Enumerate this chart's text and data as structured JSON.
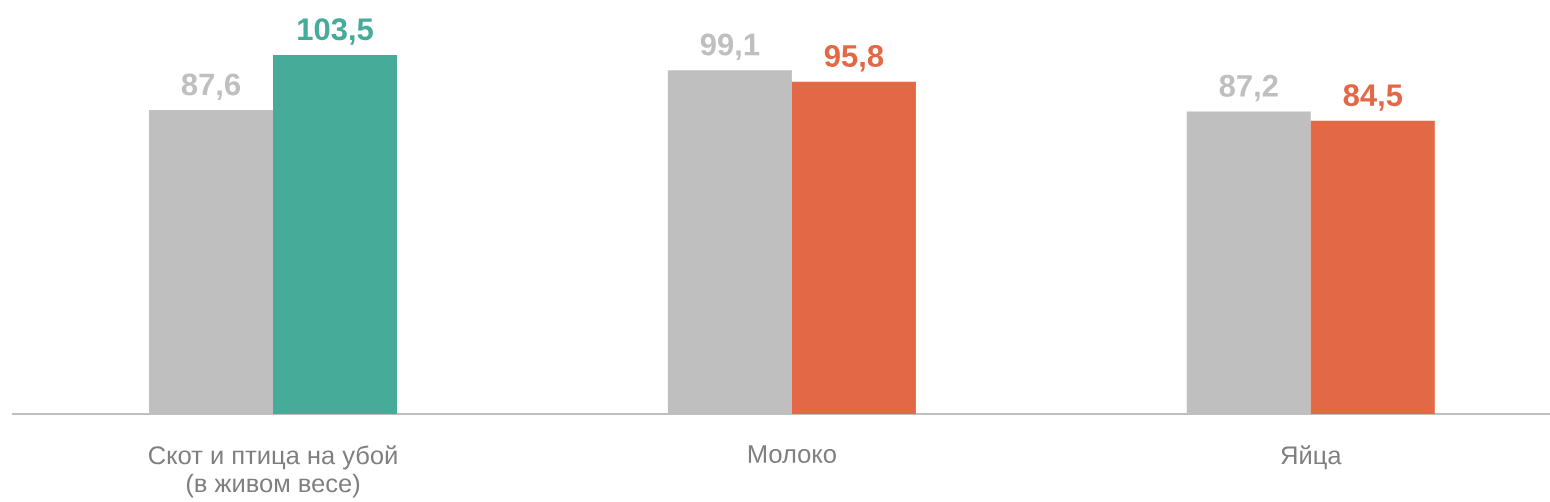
{
  "chart_data": {
    "type": "bar",
    "categories": [
      "Скот и птица на убой (в живом весе)",
      "Молоко",
      "Яйца"
    ],
    "series": [
      {
        "color": "#bfbfbf",
        "values": [
          87.6,
          99.1,
          87.2
        ],
        "value_labels": [
          "87,6",
          "99,1",
          "87,2"
        ]
      },
      {
        "colors": [
          "#46ab99",
          "#e36946",
          "#e36946"
        ],
        "values": [
          103.5,
          95.8,
          84.5
        ],
        "value_labels": [
          "103,5",
          "95,8",
          "84,5"
        ]
      }
    ]
  }
}
